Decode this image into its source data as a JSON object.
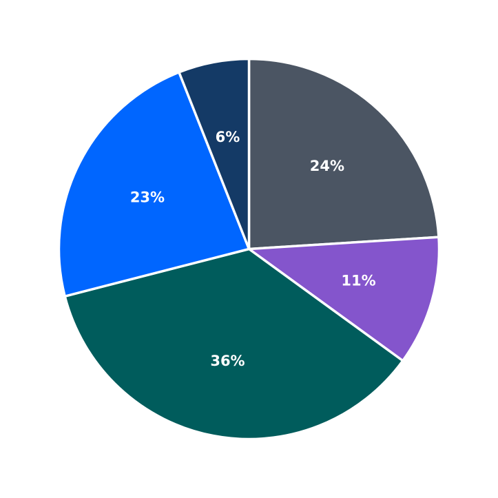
{
  "chart_data": {
    "type": "pie",
    "start_angle_deg": 90,
    "direction": "clockwise",
    "slices": [
      {
        "value": 24,
        "label": "24%",
        "color": "#4b5563"
      },
      {
        "value": 11,
        "label": "11%",
        "color": "#8455cc"
      },
      {
        "value": 36,
        "label": "36%",
        "color": "#005c5c"
      },
      {
        "value": 23,
        "label": "23%",
        "color": "#0066ff"
      },
      {
        "value": 6,
        "label": "6%",
        "color": "#143a66"
      }
    ],
    "legend": "none"
  }
}
